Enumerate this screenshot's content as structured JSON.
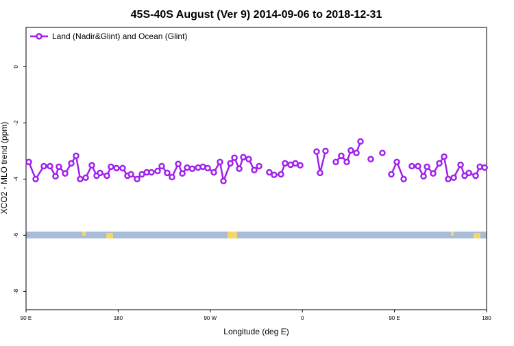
{
  "chart_data": {
    "type": "line",
    "title": "45S-40S August (Ver 9)   2014-09-06 to 2018-12-31",
    "x_label": "Longitude (deg E)",
    "y_label": "XCO2 - MLO trend (ppm)",
    "xlim": [
      90,
      540
    ],
    "ylim": [
      -8.65,
      1.4
    ],
    "xticks": [
      {
        "value": 90,
        "label": "90 E"
      },
      180,
      {
        "value": 270,
        "label": "90 W"
      },
      {
        "value": 360,
        "label": "0"
      },
      {
        "value": 450,
        "label": "90 E"
      },
      {
        "value": 540,
        "label": "180"
      }
    ],
    "yticks": [
      0,
      -2,
      -4,
      -6,
      -8
    ],
    "legend": "top-left",
    "series": [
      {
        "name": "Land (Nadir&Glint) and Ocean (Glint)",
        "color": "#a020f0",
        "x": [
          92.7,
          99.4,
          107.4,
          113.4,
          118.8,
          122.1,
          128.2,
          134.2,
          138.9,
          142.9,
          148.3,
          154.3,
          159.0,
          162.3,
          169.0,
          173.0,
          178.4,
          184.4,
          189.1,
          192.5,
          198.5,
          203.2,
          207.9,
          212.5,
          218.6,
          222.6,
          227.9,
          232.6,
          238.7,
          242.7,
          247.4,
          252.4,
          258.1,
          262.8,
          267.5,
          273.5,
          279.5,
          282.9,
          289.6,
          293.6,
          298.3,
          302.3,
          307.6,
          313.0,
          317.7,
          null,
          327.7,
          332.4,
          339.1,
          343.1,
          348.5,
          353.2,
          357.9,
          null,
          373.9,
          377.3,
          382.6,
          null,
          392.7,
          398.0,
          403.4,
          407.4,
          412.8,
          416.8,
          null,
          426.8,
          null,
          438.2,
          null,
          446.9,
          452.3,
          459.0,
          null,
          467.0,
          473.0,
          478.4,
          481.8,
          487.8,
          493.8,
          498.5,
          502.5,
          507.9,
          514.6,
          518.6,
          522.7,
          529.3,
          533.4,
          538.1
        ],
        "values": [
          -3.39,
          -4.0,
          -3.54,
          -3.54,
          -3.9,
          -3.56,
          -3.8,
          -3.44,
          -3.17,
          -4.0,
          -3.95,
          -3.51,
          -3.88,
          -3.78,
          -3.88,
          -3.56,
          -3.61,
          -3.61,
          -3.88,
          -3.83,
          -4.0,
          -3.83,
          -3.76,
          -3.76,
          -3.71,
          -3.54,
          -3.78,
          -3.93,
          -3.46,
          -3.8,
          -3.59,
          -3.63,
          -3.59,
          -3.56,
          -3.61,
          -3.76,
          -3.39,
          -4.07,
          -3.44,
          -3.24,
          -3.63,
          -3.22,
          -3.29,
          -3.68,
          -3.54,
          null,
          -3.76,
          -3.85,
          -3.83,
          -3.44,
          -3.49,
          -3.44,
          -3.51,
          null,
          -3.02,
          -3.78,
          -3.0,
          null,
          -3.39,
          -3.17,
          -3.39,
          -2.98,
          -3.07,
          -2.66,
          null,
          -3.29,
          null,
          -3.07,
          null,
          -3.83,
          -3.39,
          -4.0,
          null,
          -3.54,
          -3.54,
          -3.9,
          -3.56,
          -3.8,
          -3.44,
          -3.2,
          -4.0,
          -3.95,
          -3.49,
          -3.88,
          -3.78,
          -3.88,
          -3.56,
          -3.59
        ]
      }
    ]
  }
}
